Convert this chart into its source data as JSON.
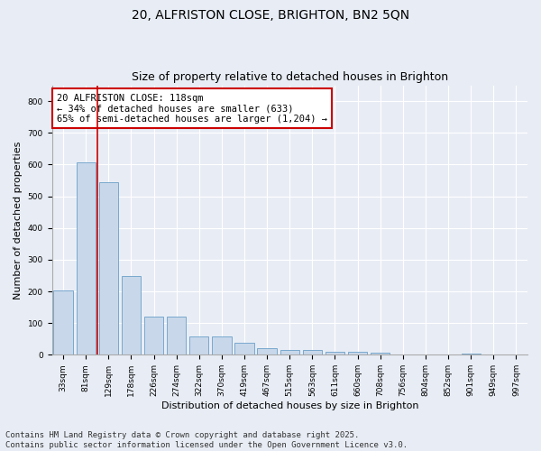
{
  "title_line1": "20, ALFRISTON CLOSE, BRIGHTON, BN2 5QN",
  "title_line2": "Size of property relative to detached houses in Brighton",
  "xlabel": "Distribution of detached houses by size in Brighton",
  "ylabel": "Number of detached properties",
  "categories": [
    "33sqm",
    "81sqm",
    "129sqm",
    "178sqm",
    "226sqm",
    "274sqm",
    "322sqm",
    "370sqm",
    "419sqm",
    "467sqm",
    "515sqm",
    "563sqm",
    "611sqm",
    "660sqm",
    "708sqm",
    "756sqm",
    "804sqm",
    "852sqm",
    "901sqm",
    "949sqm",
    "997sqm"
  ],
  "values": [
    203,
    607,
    545,
    248,
    120,
    120,
    58,
    57,
    37,
    22,
    15,
    14,
    10,
    10,
    7,
    0,
    0,
    0,
    5,
    0,
    0
  ],
  "bar_color": "#c8d8ea",
  "bar_edge_color": "#6a9fc8",
  "vline_color": "#cc0000",
  "vline_x_index": 2,
  "annotation_text": "20 ALFRISTON CLOSE: 118sqm\n← 34% of detached houses are smaller (633)\n65% of semi-detached houses are larger (1,204) →",
  "annotation_box_color": "#cc0000",
  "ylim": [
    0,
    850
  ],
  "yticks": [
    0,
    100,
    200,
    300,
    400,
    500,
    600,
    700,
    800
  ],
  "bg_color": "#e8edf5",
  "plot_bg_color": "#e8edf5",
  "footer_line1": "Contains HM Land Registry data © Crown copyright and database right 2025.",
  "footer_line2": "Contains public sector information licensed under the Open Government Licence v3.0.",
  "title_fontsize": 10,
  "subtitle_fontsize": 9,
  "axis_label_fontsize": 8,
  "tick_fontsize": 6.5,
  "annotation_fontsize": 7.5,
  "footer_fontsize": 6.5
}
